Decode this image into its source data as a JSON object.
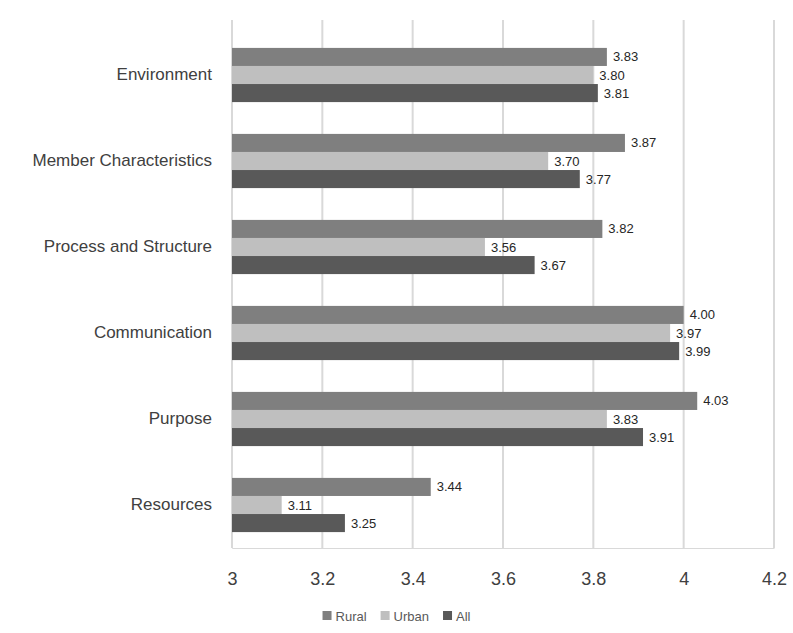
{
  "chart_data": {
    "type": "bar",
    "orientation": "horizontal",
    "categories": [
      "Environment",
      "Member Characteristics",
      "Process and Structure",
      "Communication",
      "Purpose",
      "Resources"
    ],
    "series": [
      {
        "name": "Rural",
        "color": "#7f7f7f",
        "values": [
          3.83,
          3.87,
          3.82,
          4.0,
          4.03,
          3.44
        ],
        "value_labels": [
          "3.83",
          "3.87",
          "3.82",
          "4.00",
          "4.03",
          "3.44"
        ]
      },
      {
        "name": "Urban",
        "color": "#bfbfbf",
        "values": [
          3.8,
          3.7,
          3.56,
          3.97,
          3.83,
          3.11
        ],
        "value_labels": [
          "3.80",
          "3.70",
          "3.56",
          "3.97",
          "3.83",
          "3.11"
        ]
      },
      {
        "name": "All",
        "color": "#595959",
        "values": [
          3.81,
          3.77,
          3.67,
          3.99,
          3.91,
          3.25
        ],
        "value_labels": [
          "3.81",
          "3.77",
          "3.67",
          "3.99",
          "3.91",
          "3.25"
        ]
      }
    ],
    "xlim": [
      3,
      4.2
    ],
    "xticks": [
      3,
      {
        "value": 3.2,
        "label": "3.2"
      },
      {
        "value": 3.4,
        "label": "3.4"
      },
      {
        "value": 3.6,
        "label": "3.6"
      },
      {
        "value": 3.8,
        "label": "3.8"
      },
      4,
      {
        "value": 4.2,
        "label": "4.2"
      }
    ],
    "grid": true,
    "legend": "bottom",
    "data_labels": true
  }
}
